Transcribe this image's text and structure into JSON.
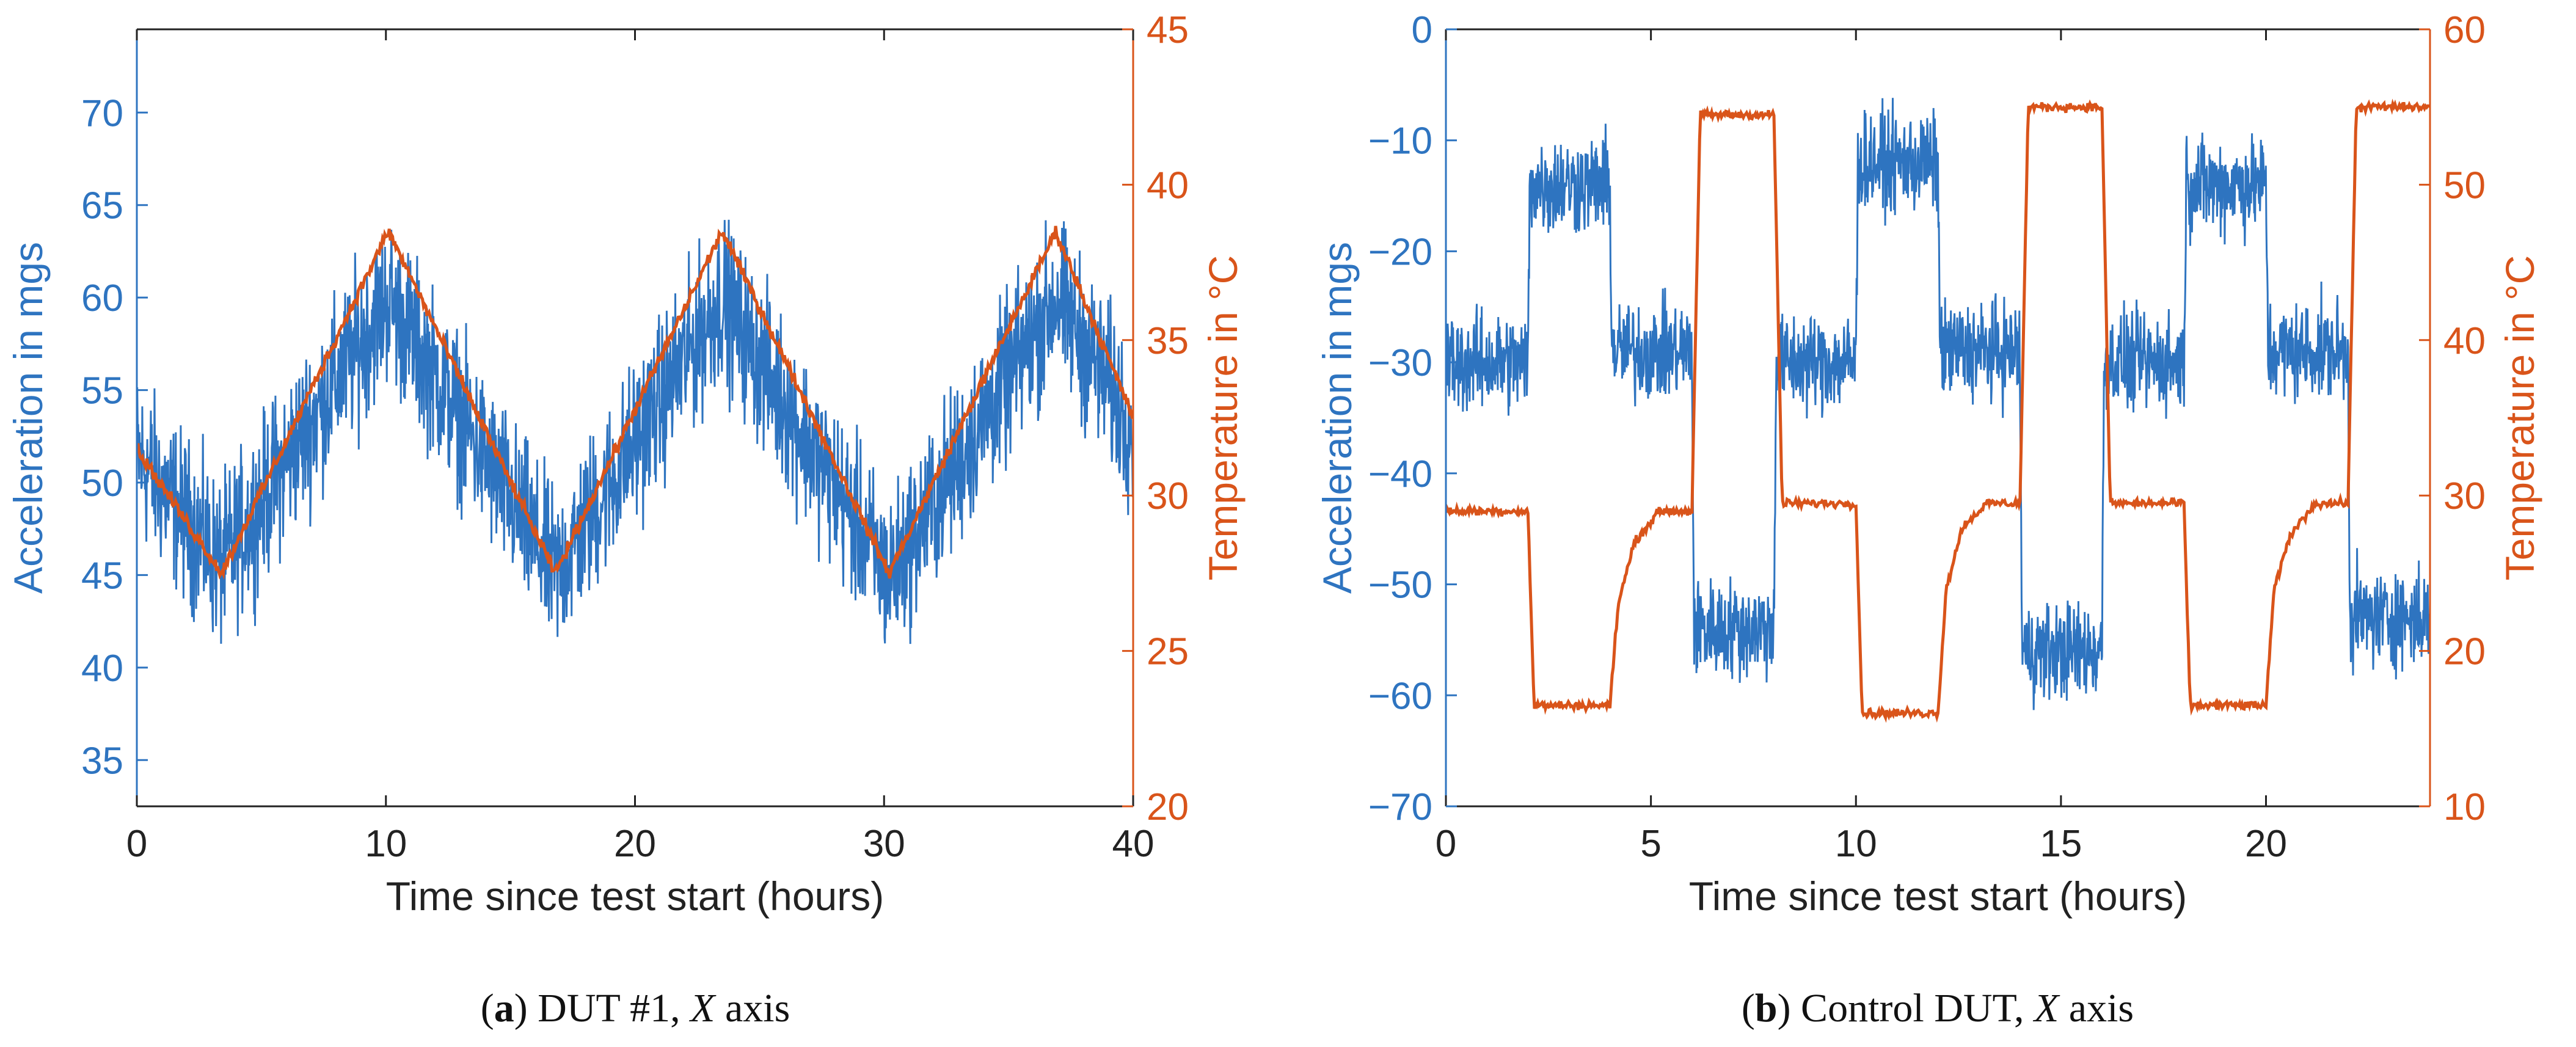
{
  "colors": {
    "acceleration": "#2e74c0",
    "temperature": "#d9541a",
    "axis": "#222222",
    "caption": "#111111"
  },
  "chart_data": [
    {
      "type": "line",
      "caption_label": "a",
      "caption_rest": " DUT #1, ",
      "caption_axis": "X",
      "caption_suffix": " axis",
      "xlabel": "Time since test start (hours)",
      "ylabel_left": "Acceleration in mgs",
      "ylabel_right": "Temperature in °C",
      "xlim": [
        0,
        40
      ],
      "ylim_left": [
        32.5,
        74.5
      ],
      "ylim_right": [
        20,
        45
      ],
      "xticks": [
        0,
        10,
        20,
        30,
        40
      ],
      "yticks_left": [
        35,
        40,
        45,
        50,
        55,
        60,
        65,
        70
      ],
      "yticks_right": [
        20,
        25,
        30,
        35,
        40,
        45
      ],
      "grid": false,
      "series": [
        {
          "axis": "left",
          "color_key": "acceleration",
          "noise_band": 13,
          "x": [
            0,
            3.4,
            10.1,
            16.8,
            23.5,
            30.2,
            36.9,
            40
          ],
          "y": [
            51.5,
            45.5,
            60,
            45,
            60,
            44.8,
            60,
            53
          ]
        },
        {
          "axis": "right",
          "color_key": "temperature",
          "noise_band": 0.6,
          "x": [
            0,
            3.4,
            10.1,
            16.8,
            23.5,
            30.2,
            36.9,
            40
          ],
          "y": [
            31.5,
            27.5,
            38.5,
            27.5,
            38.5,
            27.5,
            38.5,
            32.5
          ]
        }
      ]
    },
    {
      "type": "line",
      "caption_label": "b",
      "caption_rest": " Control DUT, ",
      "caption_axis": "X",
      "caption_suffix": " axis",
      "xlabel": "Time since test start (hours)",
      "ylabel_left": "Acceleration in mgs",
      "ylabel_right": "Temperature in °C",
      "xlim": [
        0,
        24
      ],
      "ylim_left": [
        -70,
        0
      ],
      "ylim_right": [
        10,
        60
      ],
      "xticks": [
        0,
        5,
        10,
        15,
        20
      ],
      "yticks_left": [
        -70,
        -60,
        -50,
        -40,
        -30,
        -20,
        -10,
        0
      ],
      "yticks_right": [
        10,
        20,
        30,
        40,
        50,
        60
      ],
      "grid": false,
      "series": [
        {
          "axis": "left",
          "color_key": "acceleration",
          "noise_band": 13,
          "x": [
            0,
            2,
            2.05,
            4,
            4.05,
            6,
            6.05,
            8,
            8.05,
            10,
            10.05,
            12,
            12.05,
            14,
            14.05,
            16,
            16.05,
            18,
            18.05,
            20,
            20.05,
            22,
            22.05,
            24
          ],
          "y": [
            -30,
            -30,
            -14,
            -14,
            -29,
            -29,
            -54,
            -54,
            -30,
            -30,
            -12,
            -12,
            -29,
            -29,
            -56,
            -56,
            -30,
            -30,
            -14,
            -14,
            -29,
            -29,
            -53,
            -53
          ]
        },
        {
          "axis": "right",
          "color_key": "temperature",
          "noise_band": 0.8,
          "x": [
            0,
            2,
            2.15,
            4,
            4.2,
            4.6,
            5.2,
            6,
            6.2,
            8,
            8.2,
            10,
            10.15,
            12,
            12.2,
            12.6,
            13.2,
            14,
            14.2,
            16,
            16.2,
            18,
            18.15,
            20,
            20.2,
            20.6,
            21.2,
            22,
            22.2,
            24
          ],
          "y": [
            29,
            29,
            16.5,
            16.5,
            23,
            27,
            29,
            29,
            54.5,
            54.5,
            29.5,
            29.5,
            16,
            16,
            24,
            28,
            29.5,
            29.5,
            55,
            55,
            29.5,
            29.5,
            16.5,
            16.5,
            24,
            27.5,
            29.5,
            29.5,
            55,
            55
          ]
        }
      ]
    }
  ]
}
